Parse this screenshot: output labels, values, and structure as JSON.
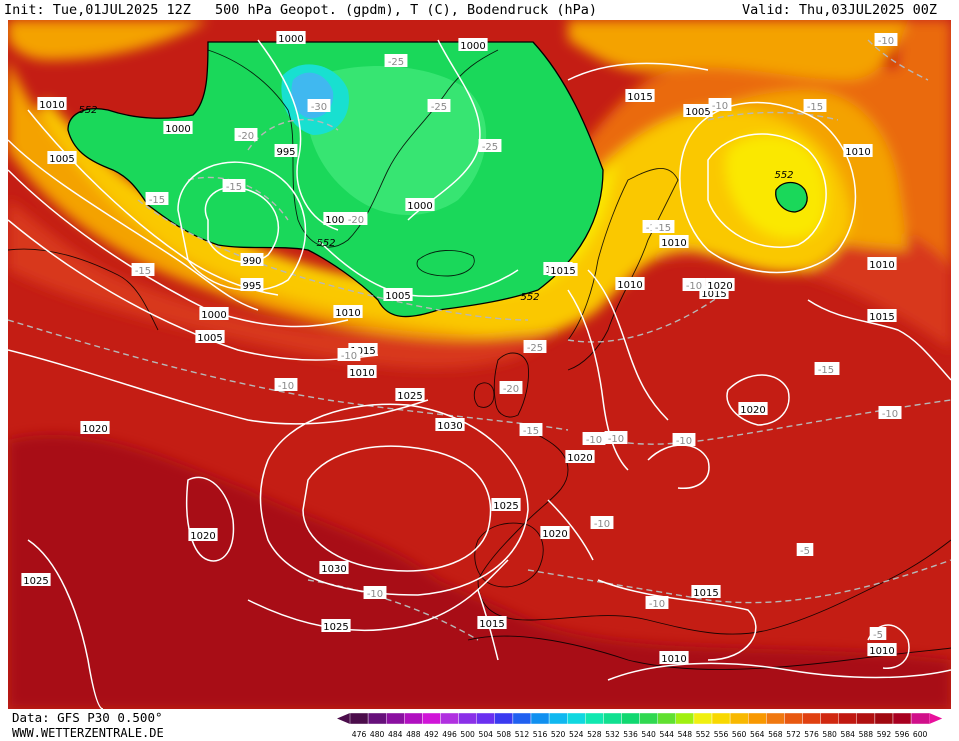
{
  "header": {
    "init": "Init: Tue,01JUL2025 12Z",
    "title": "500 hPa Geopot. (gpdm), T (C), Bodendruck (hPa)",
    "valid": "Valid: Thu,03JUL2025 00Z"
  },
  "footer": {
    "data_source": "Data: GFS P30 0.500°",
    "site": "WWW.WETTERZENTRALE.DE"
  },
  "legend": {
    "values": [
      "476",
      "480",
      "484",
      "488",
      "492",
      "496",
      "500",
      "504",
      "508",
      "512",
      "516",
      "520",
      "524",
      "528",
      "532",
      "536",
      "540",
      "544",
      "548",
      "552",
      "556",
      "560",
      "564",
      "568",
      "572",
      "576",
      "580",
      "584",
      "588",
      "592",
      "596",
      "600"
    ],
    "colors": [
      "#4b0d4b",
      "#66107a",
      "#8a10a0",
      "#b010c0",
      "#d015d8",
      "#b030e0",
      "#8a30e8",
      "#6a30f0",
      "#3a3af0",
      "#2060f0",
      "#1090f0",
      "#10b8f0",
      "#10d8e0",
      "#10e8b0",
      "#10e090",
      "#10d870",
      "#30d850",
      "#60e030",
      "#a0f010",
      "#f0f010",
      "#f8d800",
      "#f8b800",
      "#f89800",
      "#f07810",
      "#e85810",
      "#e04010",
      "#d02810",
      "#c01810",
      "#b01010",
      "#a00810",
      "#a80020",
      "#d0108a"
    ],
    "left_arrow_color": "#4b0d4b",
    "right_arrow_color": "#e8109c"
  },
  "map": {
    "colors": {
      "deep_red": "#a80a12",
      "red": "#c41d14",
      "red_orange": "#d8381a",
      "orange": "#ea6a10",
      "light_orange": "#f4a200",
      "gold": "#fac800",
      "yellow": "#fae800",
      "green": "#1ad85a",
      "light_green": "#3ee878",
      "cyan": "#18e0d0",
      "light_blue": "#40b8f0",
      "isobar": "#ffffff",
      "isotherm": "#b8b8b8",
      "geopotential": "#000000"
    },
    "isobar_labels": [
      "1000",
      "1000",
      "1010",
      "1000",
      "1005",
      "995",
      "1005",
      "1000",
      "990",
      "995",
      "1000",
      "1005",
      "1010",
      "1005",
      "1015",
      "1010",
      "1020",
      "1025",
      "1030",
      "1020",
      "1020",
      "1025",
      "1020",
      "1025",
      "1030",
      "1025",
      "1015",
      "1015",
      "1010",
      "1010",
      "1015",
      "1005",
      "1010",
      "1010",
      "1015",
      "1010",
      "1020",
      "1015",
      "1005",
      "1010",
      "1020",
      "1010",
      "1015"
    ],
    "isotherm_labels": [
      "-25",
      "-30",
      "-25",
      "-20",
      "-25",
      "-15",
      "-15",
      "-20",
      "-15",
      "-10",
      "-10",
      "-10",
      "-25",
      "-20",
      "-15",
      "-10",
      "-10",
      "-10",
      "-10",
      "-10",
      "-10",
      "-10",
      "-15",
      "-10",
      "-15",
      "-15",
      "-15",
      "-10",
      "-15",
      "-10",
      "-5",
      "-5",
      "-10"
    ],
    "contour_552_labels": [
      "552",
      "552",
      "552",
      "552"
    ]
  }
}
